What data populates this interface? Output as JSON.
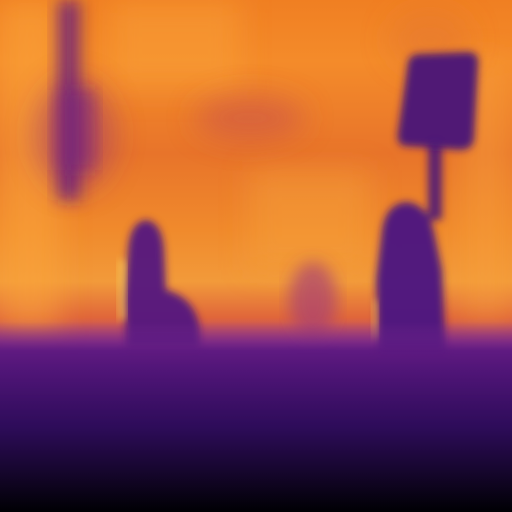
{
  "image": {
    "kind": "depth-map",
    "colormap": "inferno",
    "palette": {
      "near": "#000004",
      "mid_near": "#4a1478",
      "mid": "#a8408a",
      "mid_far": "#e0663a",
      "far": "#f48b2a",
      "farthest": "#fbb13a"
    },
    "regions": [
      "sky-band",
      "left-pole",
      "figure-left",
      "figure-right-sign",
      "distant-blob",
      "ground-gradient"
    ]
  }
}
